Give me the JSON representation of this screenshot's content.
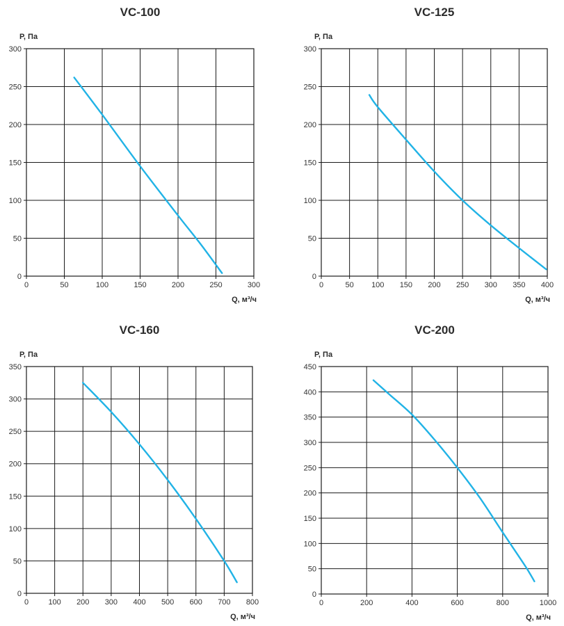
{
  "chart_data": [
    {
      "type": "line",
      "title": "VC-100",
      "ylabel": "P, Па",
      "xlabel": "Q, м³/ч",
      "xlim": [
        0,
        300
      ],
      "ylim": [
        0,
        300
      ],
      "xticks": [
        0,
        50,
        100,
        150,
        200,
        250,
        300
      ],
      "yticks": [
        0,
        50,
        100,
        150,
        200,
        250,
        300
      ],
      "grid": true,
      "series": [
        {
          "x": [
            63,
            100,
            150,
            200,
            230,
            258
          ],
          "y": [
            262,
            213,
            145,
            80,
            42,
            4
          ]
        }
      ]
    },
    {
      "type": "line",
      "title": "VC-125",
      "ylabel": "P, Па",
      "xlabel": "Q, м³/ч",
      "xlim": [
        0,
        400
      ],
      "ylim": [
        0,
        300
      ],
      "xticks": [
        0,
        50,
        100,
        150,
        200,
        250,
        300,
        350,
        400
      ],
      "yticks": [
        0,
        50,
        100,
        150,
        200,
        250,
        300
      ],
      "grid": true,
      "series": [
        {
          "x": [
            85,
            100,
            150,
            200,
            250,
            300,
            350,
            398
          ],
          "y": [
            239,
            223,
            180,
            138,
            100,
            67,
            37,
            9
          ]
        }
      ]
    },
    {
      "type": "line",
      "title": "VC-160",
      "ylabel": "P, Па",
      "xlabel": "Q, м³/ч",
      "xlim": [
        0,
        800
      ],
      "ylim": [
        0,
        350
      ],
      "xticks": [
        0,
        100,
        200,
        300,
        400,
        500,
        600,
        700,
        800
      ],
      "yticks": [
        0,
        50,
        100,
        150,
        200,
        250,
        300,
        350
      ],
      "grid": true,
      "series": [
        {
          "x": [
            200,
            300,
            400,
            500,
            600,
            700,
            745
          ],
          "y": [
            325,
            280,
            230,
            175,
            115,
            50,
            17
          ]
        }
      ]
    },
    {
      "type": "line",
      "title": "VC-200",
      "ylabel": "P, Па",
      "xlabel": "Q, м³/ч",
      "xlim": [
        0,
        1000
      ],
      "ylim": [
        0,
        450
      ],
      "xticks": [
        0,
        200,
        400,
        600,
        800,
        1000
      ],
      "yticks": [
        0,
        50,
        100,
        150,
        200,
        250,
        300,
        350,
        400,
        450
      ],
      "grid": true,
      "series": [
        {
          "x": [
            230,
            300,
            400,
            500,
            600,
            700,
            800,
            900,
            940
          ],
          "y": [
            423,
            395,
            355,
            305,
            250,
            190,
            122,
            55,
            25
          ]
        }
      ]
    }
  ]
}
